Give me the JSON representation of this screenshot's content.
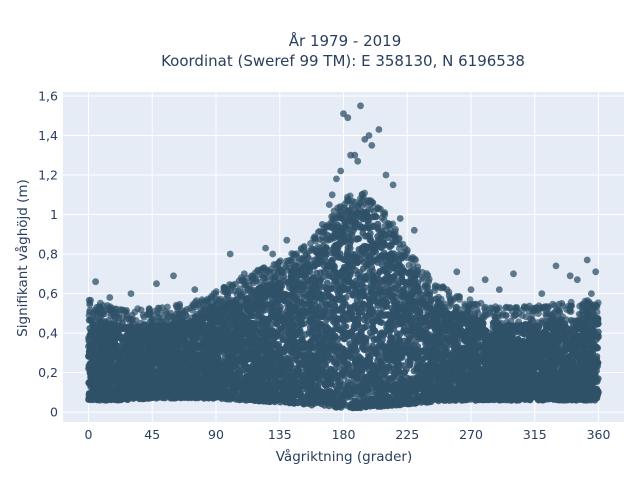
{
  "chart_data": {
    "type": "scatter",
    "title_line1": "År 1979 - 2019",
    "title_line2": "Koordinat (Sweref 99 TM): E 358130, N 6196538",
    "xlabel": "Vågriktning (grader)",
    "ylabel": "Signifikant våghöjd (m)",
    "xlim": [
      -18,
      378
    ],
    "ylim": [
      -0.05,
      1.62
    ],
    "xticks": [
      0,
      45,
      90,
      135,
      180,
      225,
      270,
      315,
      360
    ],
    "xtick_labels": [
      "0",
      "45",
      "90",
      "135",
      "180",
      "225",
      "270",
      "315",
      "360"
    ],
    "yticks": [
      0,
      0.2,
      0.4,
      0.6,
      0.8,
      1.0,
      1.2,
      1.4,
      1.6
    ],
    "ytick_labels": [
      "0",
      "0,2",
      "0,4",
      "0,6",
      "0,8",
      "1",
      "1,2",
      "1,4",
      "1,6"
    ],
    "marker_color": "#2f5168",
    "background_color": "#e5ecf6",
    "grid": true,
    "envelope": {
      "direction_deg": [
        0,
        20,
        45,
        70,
        90,
        110,
        135,
        150,
        165,
        180,
        195,
        210,
        225,
        240,
        260,
        280,
        300,
        330,
        360
      ],
      "lower_height_m": [
        0.06,
        0.06,
        0.07,
        0.07,
        0.07,
        0.06,
        0.05,
        0.04,
        0.03,
        0.02,
        0.02,
        0.03,
        0.04,
        0.05,
        0.06,
        0.06,
        0.06,
        0.06,
        0.06
      ],
      "upper_height_m": [
        0.48,
        0.44,
        0.44,
        0.46,
        0.52,
        0.6,
        0.68,
        0.74,
        0.84,
        1.0,
        1.02,
        0.92,
        0.74,
        0.6,
        0.5,
        0.46,
        0.44,
        0.46,
        0.48
      ]
    },
    "extreme_points": {
      "x": [
        180,
        183,
        192,
        195,
        198,
        205,
        188,
        175,
        178,
        200,
        210,
        215,
        170,
        165,
        160,
        140,
        125,
        100,
        60,
        48,
        30,
        5,
        300,
        330,
        345,
        352,
        355,
        358,
        260,
        270,
        230,
        225,
        280,
        320,
        185,
        190,
        172,
        220,
        240,
        130,
        110,
        75,
        15,
        290,
        340
      ],
      "y": [
        1.51,
        1.49,
        1.55,
        1.38,
        1.4,
        1.43,
        1.3,
        1.18,
        1.22,
        1.35,
        1.2,
        1.15,
        1.05,
        0.95,
        0.88,
        0.87,
        0.83,
        0.8,
        0.69,
        0.65,
        0.6,
        0.66,
        0.7,
        0.74,
        0.67,
        0.77,
        0.6,
        0.71,
        0.71,
        0.62,
        0.92,
        0.82,
        0.67,
        0.6,
        1.3,
        1.27,
        1.1,
        0.98,
        0.66,
        0.8,
        0.7,
        0.62,
        0.58,
        0.62,
        0.69
      ]
    }
  }
}
